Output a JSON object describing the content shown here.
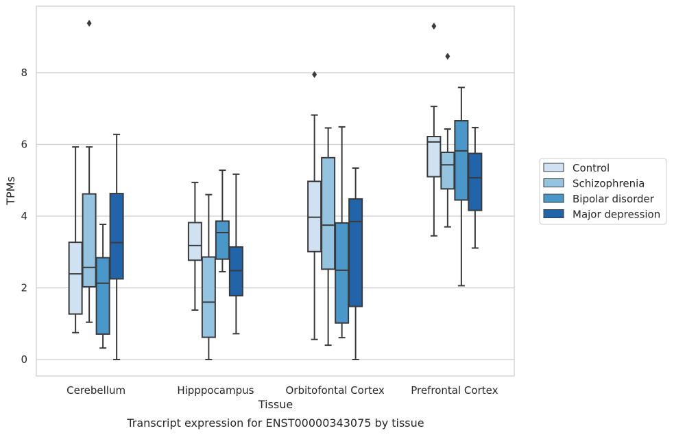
{
  "chart_data": {
    "type": "box",
    "caption": "Transcript expression for ENST00000343075 by tissue",
    "xlabel": "Tissue",
    "ylabel": "TPMs",
    "ylim": [
      -0.45,
      9.85
    ],
    "yticks": [
      0,
      2,
      4,
      6,
      8
    ],
    "grid": "horizontal",
    "legend_position": "right",
    "categories": [
      "Cerebellum",
      "Hipppocampus",
      "Orbitofontal Cortex",
      "Prefrontal Cortex"
    ],
    "series": [
      {
        "name": "Control",
        "color": "#d0e1f2",
        "boxes": [
          {
            "whislo": 0.75,
            "q1": 1.27,
            "med": 2.39,
            "q3": 3.27,
            "whishi": 5.93,
            "fliers": []
          },
          {
            "whislo": 1.38,
            "q1": 2.77,
            "med": 3.18,
            "q3": 3.82,
            "whishi": 4.94,
            "fliers": []
          },
          {
            "whislo": 0.56,
            "q1": 3.01,
            "med": 3.97,
            "q3": 4.97,
            "whishi": 6.82,
            "fliers": [
              7.95
            ]
          },
          {
            "whislo": 3.45,
            "q1": 5.1,
            "med": 6.07,
            "q3": 6.22,
            "whishi": 7.06,
            "fliers": [
              9.3
            ]
          }
        ]
      },
      {
        "name": "Schizophrenia",
        "color": "#94c4df",
        "boxes": [
          {
            "whislo": 1.04,
            "q1": 2.03,
            "med": 2.57,
            "q3": 4.62,
            "whishi": 5.93,
            "fliers": [
              9.38
            ]
          },
          {
            "whislo": 0.0,
            "q1": 0.62,
            "med": 1.6,
            "q3": 2.86,
            "whishi": 4.6,
            "fliers": []
          },
          {
            "whislo": 0.4,
            "q1": 2.52,
            "med": 3.75,
            "q3": 5.63,
            "whishi": 6.46,
            "fliers": []
          },
          {
            "whislo": 3.7,
            "q1": 4.76,
            "med": 5.43,
            "q3": 5.78,
            "whishi": 6.43,
            "fliers": [
              8.46
            ]
          }
        ]
      },
      {
        "name": "Bipolar disorder",
        "color": "#4a98c9",
        "boxes": [
          {
            "whislo": 0.32,
            "q1": 0.71,
            "med": 2.13,
            "q3": 2.84,
            "whishi": 3.77,
            "fliers": []
          },
          {
            "whislo": 2.45,
            "q1": 2.8,
            "med": 3.54,
            "q3": 3.86,
            "whishi": 5.28,
            "fliers": []
          },
          {
            "whislo": 0.61,
            "q1": 1.02,
            "med": 2.49,
            "q3": 3.81,
            "whishi": 6.49,
            "fliers": []
          },
          {
            "whislo": 2.06,
            "q1": 4.45,
            "med": 5.82,
            "q3": 6.66,
            "whishi": 7.59,
            "fliers": []
          }
        ]
      },
      {
        "name": "Major depression",
        "color": "#2264a9",
        "boxes": [
          {
            "whislo": 0.0,
            "q1": 2.25,
            "med": 3.26,
            "q3": 4.63,
            "whishi": 6.28,
            "fliers": []
          },
          {
            "whislo": 0.72,
            "q1": 1.78,
            "med": 2.48,
            "q3": 3.14,
            "whishi": 5.17,
            "fliers": []
          },
          {
            "whislo": 0.0,
            "q1": 1.48,
            "med": 3.85,
            "q3": 4.48,
            "whishi": 5.34,
            "fliers": []
          },
          {
            "whislo": 3.11,
            "q1": 4.16,
            "med": 5.07,
            "q3": 5.75,
            "whishi": 6.47,
            "fliers": []
          }
        ]
      }
    ]
  }
}
